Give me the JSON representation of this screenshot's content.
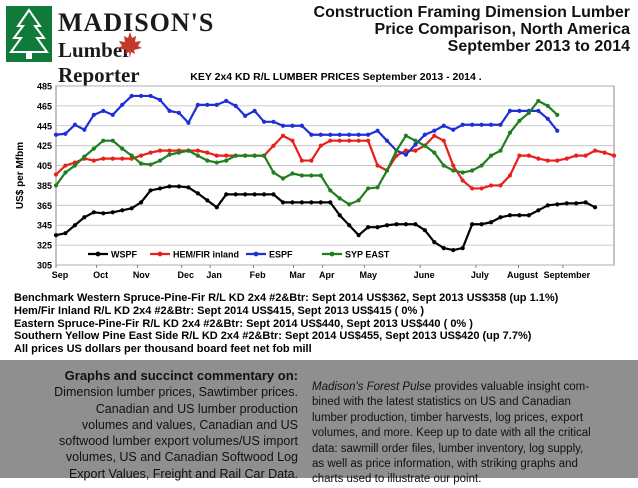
{
  "logo": {
    "name": "MADISON'S",
    "sub_left": "Lumber",
    "sub_right": "Reporter"
  },
  "header": {
    "line1": "Construction Framing Dimension Lumber",
    "line2": "Price Comparison, North America",
    "line3": "September 2013 to 2014"
  },
  "chart_data": {
    "type": "line",
    "title": "KEY 2x4 KD R/L LUMBER PRICES September 2013 - 2014",
    "title_suffix": ".",
    "ylabel": "US$ per Mfbm",
    "xlabel": "",
    "ylim": [
      305,
      485
    ],
    "yticks": [
      305,
      325,
      345,
      365,
      385,
      405,
      425,
      445,
      465,
      485
    ],
    "x_labels": [
      "Sep",
      "Oct",
      "Nov",
      "Dec",
      "Jan",
      "Feb",
      "Mar",
      "Apr",
      "May",
      "June",
      "July",
      "August",
      "September"
    ],
    "x_label_index": [
      0,
      4.3,
      8.6,
      13.3,
      16.3,
      20.9,
      25.1,
      28.2,
      32.6,
      38.5,
      44.4,
      48.9,
      53.6
    ],
    "grid": true,
    "legend_position": "bottom-left",
    "colors": {
      "WSPF": "#000000",
      "HEM/FIR inland": "#e8201a",
      "ESPF": "#1f2fd6",
      "SYP EAST": "#1f7f1f"
    },
    "series": [
      {
        "name": "WSPF",
        "values": [
          335,
          337,
          345,
          353,
          358,
          357,
          358,
          360,
          362,
          368,
          380,
          382,
          384,
          384,
          383,
          377,
          370,
          363,
          376,
          376,
          376,
          376,
          376,
          376,
          368,
          368,
          368,
          368,
          368,
          368,
          355,
          345,
          335,
          343,
          343,
          345,
          346,
          346,
          346,
          340,
          328,
          322,
          320,
          322,
          346,
          346,
          348,
          353,
          355,
          355,
          355,
          360,
          365,
          366,
          367,
          367,
          368,
          363
        ]
      },
      {
        "name": "HEM/FIR inland",
        "values": [
          396,
          405,
          408,
          412,
          410,
          412,
          412,
          412,
          412,
          415,
          418,
          420,
          420,
          420,
          420,
          420,
          418,
          415,
          415,
          415,
          415,
          415,
          415,
          425,
          435,
          430,
          410,
          410,
          425,
          430,
          430,
          430,
          430,
          430,
          405,
          400,
          415,
          420,
          420,
          425,
          435,
          430,
          405,
          390,
          382,
          382,
          385,
          385,
          395,
          415,
          415,
          412,
          410,
          410,
          412,
          415,
          415,
          420,
          418,
          415
        ]
      },
      {
        "name": "ESPF",
        "values": [
          436,
          437,
          446,
          441,
          456,
          460,
          456,
          466,
          475,
          475,
          475,
          471,
          460,
          458,
          448,
          466,
          466,
          466,
          470,
          465,
          455,
          460,
          449,
          449,
          445,
          445,
          445,
          436,
          436,
          436,
          436,
          436,
          436,
          436,
          440,
          430,
          420,
          416,
          426,
          436,
          440,
          445,
          441,
          446,
          446,
          446,
          446,
          446,
          460,
          460,
          460,
          460,
          452,
          440
        ]
      },
      {
        "name": "SYP EAST",
        "values": [
          385,
          398,
          405,
          414,
          422,
          430,
          430,
          422,
          415,
          407,
          406,
          410,
          416,
          418,
          420,
          415,
          410,
          408,
          410,
          415,
          415,
          415,
          415,
          398,
          392,
          397,
          395,
          395,
          395,
          380,
          372,
          366,
          370,
          382,
          383,
          400,
          420,
          435,
          430,
          425,
          418,
          405,
          400,
          398,
          400,
          405,
          415,
          420,
          438,
          450,
          458,
          470,
          465,
          456
        ]
      }
    ]
  },
  "notes": [
    "Benchmark Western Spruce-Pine-Fir R/L KD 2x4 #2&Btr: Sept 2014 US$362, Sept 2013 US$358 (up 1.1%)",
    "Hem/Fir Inland R/L KD 2x4 #2&Btr: Sept 2014 US$415, Sept 2013 US$415 ( 0% )",
    "Eastern Spruce-Pine-Fir R/L KD 2x4 #2&Btr: Sept 2014 US$440, Sept 2013 US$440 ( 0% )",
    "Southern Yellow Pine East Side R/L KD 2x4 #2&Btr: Sept 2014 US$455, Sept 2013 US$420 (up 7.7%)",
    "All prices US dollars per thousand board feet net fob mill"
  ],
  "ad": {
    "left_heading": "Graphs and succinct commentary on:",
    "left_lines": [
      "Dimension lumber prices, Sawtimber prices.",
      "Canadian and US lumber production",
      "volumes and values, Canadian and US",
      "softwood lumber export volumes/US import",
      "volumes, US and Canadian Softwood Log",
      "Export Values, Freight and Rail Car Data."
    ],
    "right_brand": "Madison's Forest Pulse",
    "right_lines": [
      " provides valuable insight com-",
      "bined with the latest statistics on US and Canadian",
      "lumber production, timber harvests, log prices, export",
      "volumes, and more. Keep up to date with all the critical",
      "data: sawmill order files, lumber inventory, log supply,",
      "as well as price information, with striking graphs and",
      "charts used to illustrate our point."
    ]
  }
}
